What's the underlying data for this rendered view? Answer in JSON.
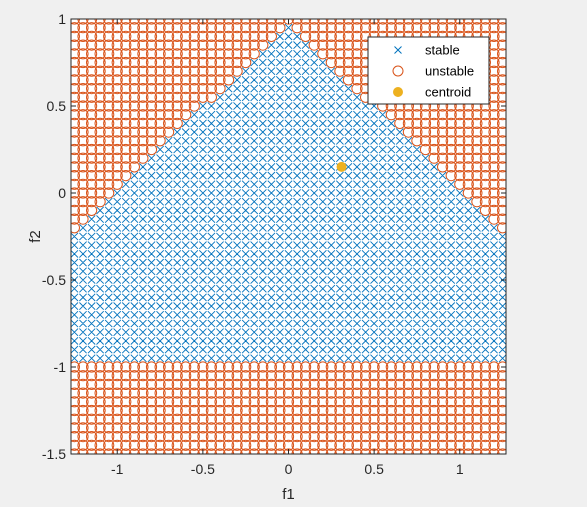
{
  "chart_data": {
    "type": "scatter",
    "xlabel": "f1",
    "ylabel": "f2",
    "xlim": [
      -1.27,
      1.27
    ],
    "ylim": [
      -1.5,
      1.0
    ],
    "x_ticks": [
      -1,
      -0.5,
      0,
      0.5,
      1
    ],
    "x_tick_labels": [
      "-1",
      "-0.5",
      "0",
      "0.5",
      "1"
    ],
    "y_ticks": [
      -1.5,
      -1,
      -0.5,
      0,
      0.5,
      1
    ],
    "y_tick_labels": [
      "-1.5",
      "-1",
      "-0.5",
      "0",
      "0.5",
      "1"
    ],
    "grid": false,
    "legend_position": "top-right",
    "series": [
      {
        "name": "stable",
        "marker": "x",
        "color": "#0072BD",
        "region": "f2 >= -0.975 and f2 <= 0.975 - 0.95*|f1|, within the plotted grid"
      },
      {
        "name": "unstable",
        "marker": "open-circle",
        "color": "#D95319",
        "region": "all remaining grid points"
      },
      {
        "name": "centroid",
        "marker": "filled-circle",
        "color": "#EDB120",
        "points": [
          [
            0.31,
            0.15
          ]
        ]
      }
    ],
    "sampling_grid": {
      "x_start": -1.25,
      "x_end": 1.25,
      "y_start": -1.5,
      "y_end": 1.0,
      "step": 0.05
    }
  }
}
